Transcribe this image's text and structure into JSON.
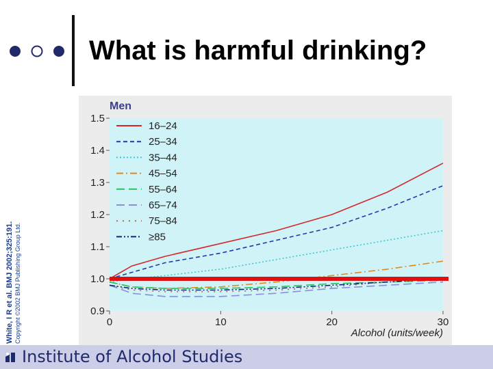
{
  "slide": {
    "title": "What is harmful drinking?",
    "credit_line_1": "White, I R et al. BMJ 2002;325:191.",
    "credit_line_2": "Copyright ©2002 BMJ Publishing Group Ltd."
  },
  "footer": {
    "text_1": "Institute of ",
    "text_2": "Alcohol Studies"
  },
  "colors": {
    "plot_bg": "#cff3f6",
    "axis_bg": "#ececec",
    "reference_line": "#e01010",
    "footer_bg": "#cccde6"
  },
  "chart_data": {
    "type": "line",
    "panel_label": "Men",
    "xlabel": "Alcohol (units/week)",
    "ylabel": "",
    "xlim": [
      0,
      30
    ],
    "ylim": [
      0.9,
      1.5
    ],
    "x_ticks": [
      0,
      10,
      20,
      30
    ],
    "y_ticks": [
      0.9,
      1.0,
      1.1,
      1.2,
      1.3,
      1.4,
      1.5
    ],
    "y_tick_labels": [
      "0.9",
      "1.0",
      "1.1",
      "1.2",
      "1.3",
      "1.4",
      "1.5"
    ],
    "legend_position": "top-left",
    "grid": false,
    "reference_y": 1.0,
    "series": [
      {
        "name": "16–24",
        "color": "#d62728",
        "dash": "solid",
        "x": [
          0,
          2,
          5,
          10,
          15,
          20,
          25,
          30
        ],
        "y": [
          1.0,
          1.04,
          1.07,
          1.11,
          1.15,
          1.2,
          1.27,
          1.36
        ]
      },
      {
        "name": "25–34",
        "color": "#1f3aa8",
        "dash": "dashed",
        "x": [
          0,
          2,
          5,
          10,
          15,
          20,
          25,
          30
        ],
        "y": [
          1.0,
          1.02,
          1.05,
          1.08,
          1.12,
          1.16,
          1.22,
          1.29
        ]
      },
      {
        "name": "35–44",
        "color": "#3cc8d0",
        "dash": "dotted",
        "x": [
          0,
          2,
          5,
          10,
          15,
          20,
          25,
          30
        ],
        "y": [
          0.99,
          1.0,
          1.01,
          1.03,
          1.06,
          1.09,
          1.12,
          1.15
        ]
      },
      {
        "name": "45–54",
        "color": "#e08a1e",
        "dash": "dashdot",
        "x": [
          0,
          2,
          5,
          10,
          15,
          20,
          25,
          30
        ],
        "y": [
          0.99,
          0.975,
          0.97,
          0.975,
          0.99,
          1.01,
          1.03,
          1.055
        ]
      },
      {
        "name": "55–64",
        "color": "#22c55e",
        "dash": "longdash",
        "x": [
          0,
          2,
          5,
          10,
          15,
          20,
          25,
          30
        ],
        "y": [
          0.99,
          0.975,
          0.97,
          0.97,
          0.975,
          0.985,
          0.99,
          0.995
        ]
      },
      {
        "name": "65–74",
        "color": "#8c8ce0",
        "dash": "longdash",
        "x": [
          0,
          2,
          5,
          10,
          15,
          20,
          25,
          30
        ],
        "y": [
          0.98,
          0.955,
          0.945,
          0.945,
          0.955,
          0.97,
          0.98,
          0.99
        ]
      },
      {
        "name": "75–84",
        "color": "#c06060",
        "dash": "sparsedot",
        "x": [
          0,
          2,
          5,
          10,
          15,
          20,
          25,
          30
        ],
        "y": [
          0.98,
          0.965,
          0.96,
          0.96,
          0.965,
          0.975,
          0.99,
          1.0
        ]
      },
      {
        "name": "≥85",
        "color": "#14237a",
        "dash": "dashdotdot",
        "x": [
          0,
          2,
          5,
          10,
          15,
          20,
          25,
          30
        ],
        "y": [
          0.98,
          0.97,
          0.965,
          0.965,
          0.97,
          0.98,
          0.99,
          1.0
        ]
      }
    ]
  }
}
